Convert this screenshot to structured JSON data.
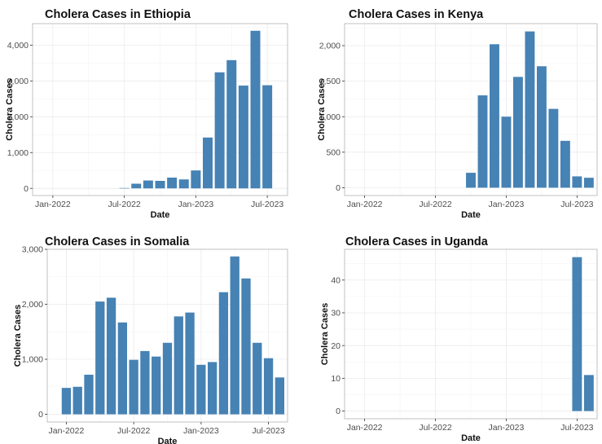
{
  "chart_data": [
    {
      "type": "bar",
      "title": "Cholera Cases in Ethiopia",
      "xlabel": "Date",
      "ylabel": "Cholera Cases",
      "x_tick_labels": [
        "Jan-2022",
        "Jul-2022",
        "Jan-2023",
        "Jul-2023"
      ],
      "y_ticks": [
        0,
        1000,
        2000,
        3000,
        4000
      ],
      "y_tick_labels": [
        "0",
        "1,000",
        "2,000",
        "3,000",
        "4,000"
      ],
      "ylim": [
        -200,
        4600
      ],
      "categories": [
        "2022-07",
        "2022-08",
        "2022-09",
        "2022-10",
        "2022-11",
        "2022-12",
        "2023-01",
        "2023-02",
        "2023-03",
        "2023-04",
        "2023-05",
        "2023-06",
        "2023-07",
        "2023-08"
      ],
      "values": [
        10,
        130,
        220,
        210,
        300,
        250,
        500,
        1420,
        3240,
        3580,
        2870,
        4400,
        2880,
        0
      ],
      "grid": true
    },
    {
      "type": "bar",
      "title": "Cholera Cases in Kenya",
      "xlabel": "Date",
      "ylabel": "Cholera Cases",
      "x_tick_labels": [
        "Jan-2022",
        "Jul-2022",
        "Jan-2023",
        "Jul-2023"
      ],
      "y_ticks": [
        0,
        500,
        1000,
        1500,
        2000
      ],
      "y_tick_labels": [
        "0",
        "500",
        "1,000",
        "1,500",
        "2,000"
      ],
      "ylim": [
        -110,
        2310
      ],
      "categories": [
        "2022-10",
        "2022-11",
        "2022-12",
        "2023-01",
        "2023-02",
        "2023-03",
        "2023-04",
        "2023-05",
        "2023-06",
        "2023-07",
        "2023-08"
      ],
      "values": [
        210,
        1300,
        2020,
        1000,
        1560,
        2200,
        1710,
        1110,
        660,
        160,
        140
      ],
      "grid": true
    },
    {
      "type": "bar",
      "title": "Cholera Cases in Somalia",
      "xlabel": "Date",
      "ylabel": "Cholera Cases",
      "x_tick_labels": [
        "Jan-2022",
        "Jul-2022",
        "Jan-2023",
        "Jul-2023"
      ],
      "y_ticks": [
        0,
        1000,
        2000,
        3000
      ],
      "y_tick_labels": [
        "0",
        "1,000",
        "2,000",
        "3,000"
      ],
      "ylim": [
        -140,
        3000
      ],
      "categories": [
        "2022-01",
        "2022-02",
        "2022-03",
        "2022-04",
        "2022-05",
        "2022-06",
        "2022-07",
        "2022-08",
        "2022-09",
        "2022-10",
        "2022-11",
        "2022-12",
        "2023-01",
        "2023-02",
        "2023-03",
        "2023-04",
        "2023-05",
        "2023-06",
        "2023-07",
        "2023-08"
      ],
      "values": [
        480,
        500,
        720,
        2050,
        2120,
        1670,
        990,
        1150,
        1050,
        1300,
        1780,
        1850,
        900,
        950,
        2220,
        2870,
        2470,
        1300,
        1020,
        670
      ],
      "grid": true
    },
    {
      "type": "bar",
      "title": "Cholera Cases in Uganda",
      "xlabel": "Date",
      "ylabel": "Cholera Cases",
      "x_tick_labels": [
        "Jan-2022",
        "Jul-2022",
        "Jan-2023",
        "Jul-2023"
      ],
      "y_ticks": [
        0,
        10,
        20,
        30,
        40
      ],
      "y_tick_labels": [
        "0",
        "10",
        "20",
        "30",
        "40"
      ],
      "ylim": [
        -2.35,
        49.4
      ],
      "categories": [
        "2023-07",
        "2023-08"
      ],
      "values": [
        47,
        11
      ],
      "grid": true
    }
  ]
}
